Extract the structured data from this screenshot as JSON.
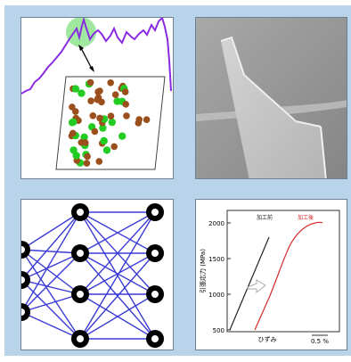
{
  "panels": {
    "structure": {
      "kind": "energy profile with atomic cell"
    },
    "micrograph": {
      "kind": "scanning electron micrograph"
    },
    "network": {
      "kind": "neural network diagram"
    },
    "stress_strain": {
      "ylabel": "引張応力 (MPa)",
      "xlabel": "ひずみ",
      "x_scale_label": "0.5 %",
      "legend_before": "加工前",
      "legend_after": "加工後",
      "y_ticks": [
        "2000",
        "1500",
        "1000",
        "500"
      ],
      "color_before": "#222222",
      "color_after": "#d42a2a"
    }
  },
  "colors": {
    "background": "#b9d3ea",
    "curve": "#8a2be2",
    "atom_green": "#22cc22",
    "atom_brown": "#9a4f1c",
    "network_edge": "#3b3bd6"
  }
}
